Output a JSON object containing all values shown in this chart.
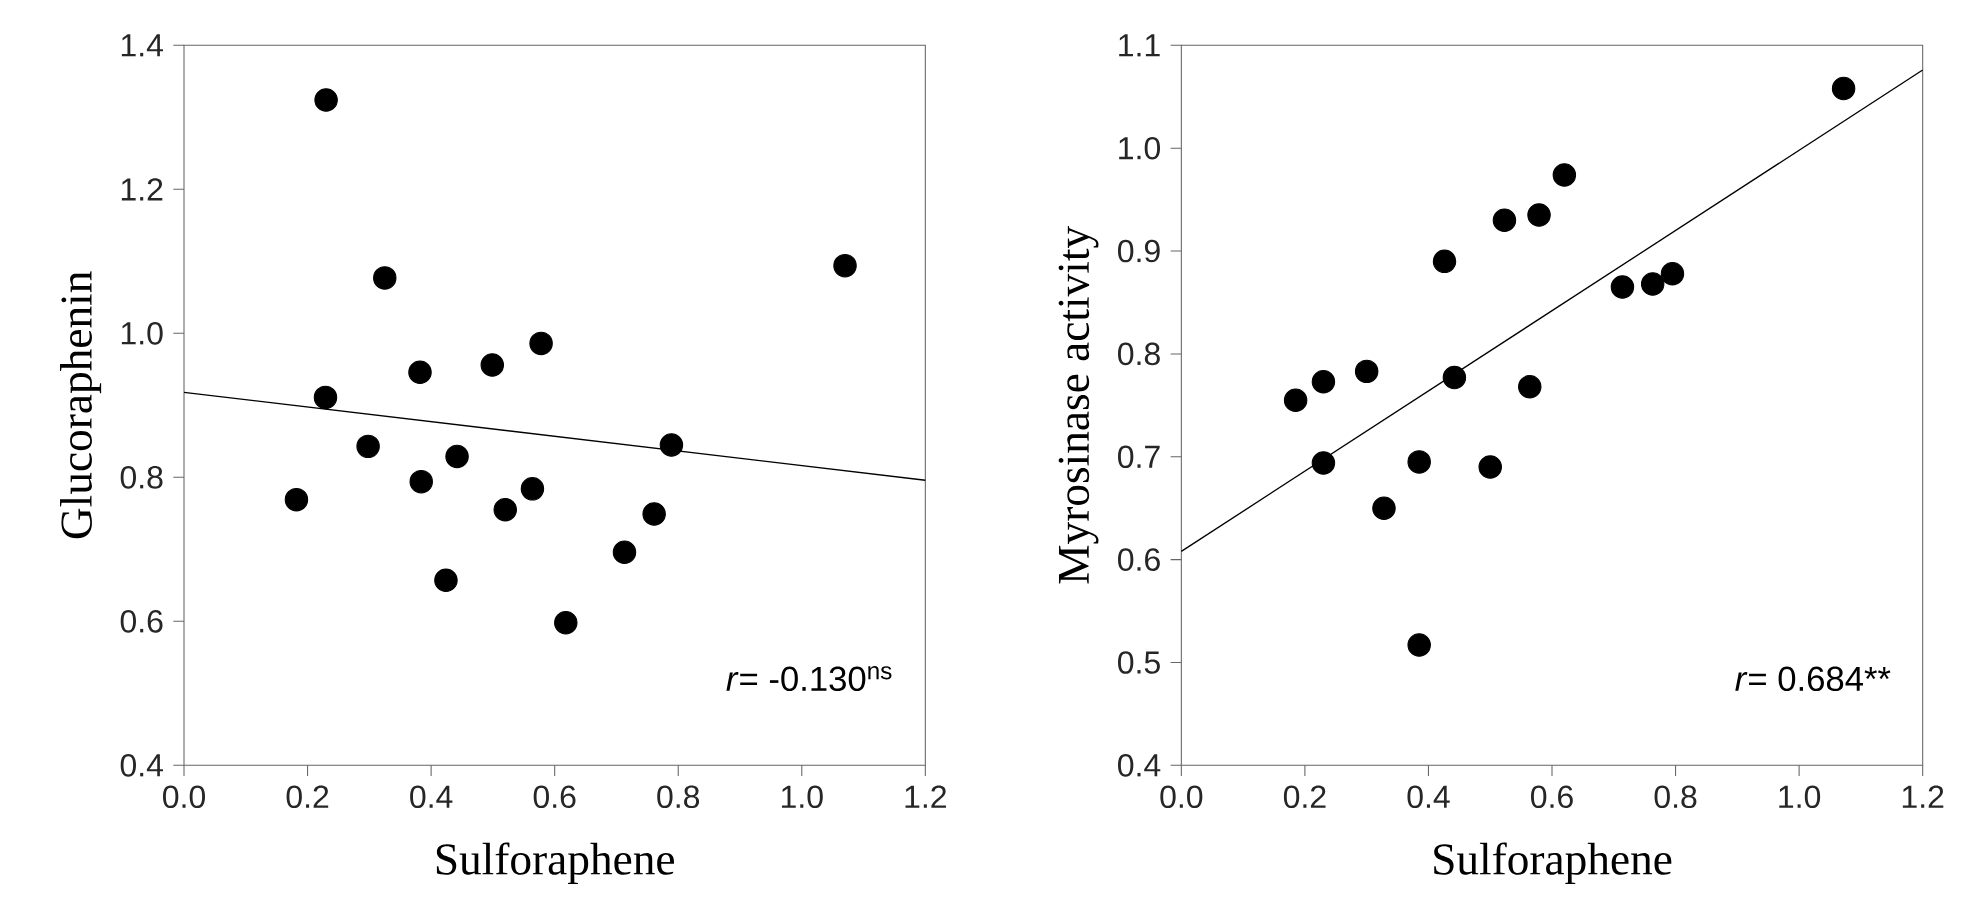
{
  "chart_data": [
    {
      "type": "scatter",
      "xlabel": "Sulforaphene",
      "ylabel": "Glucoraphenin",
      "xlim": [
        0,
        1.2
      ],
      "ylim": [
        0.4,
        1.4
      ],
      "xticks": [
        {
          "value": 0,
          "label": "0.0"
        },
        {
          "value": 0.2,
          "label": "0.2"
        },
        {
          "value": 0.4,
          "label": "0.4"
        },
        {
          "value": 0.6,
          "label": "0.6"
        },
        {
          "value": 0.8,
          "label": "0.8"
        },
        {
          "value": 1.0,
          "label": "1.0"
        },
        {
          "value": 1.2,
          "label": "1.2"
        }
      ],
      "yticks": [
        {
          "value": 0.4,
          "label": "0.4"
        },
        {
          "value": 0.6,
          "label": "0.6"
        },
        {
          "value": 0.8,
          "label": "0.8"
        },
        {
          "value": 1.0,
          "label": "1.0"
        },
        {
          "value": 1.2,
          "label": "1.2"
        },
        {
          "value": 1.4,
          "label": "1.4"
        }
      ],
      "grid": false,
      "legend": false,
      "annotations": [
        "*r*= -0.130$^{ns}$"
      ],
      "series": [
        {
          "marker": "circle",
          "color": "#000000",
          "x": [
            0.182,
            0.229,
            0.23,
            0.298,
            0.325,
            0.382,
            0.384,
            0.424,
            0.442,
            0.499,
            0.52,
            0.564,
            0.578,
            0.618,
            0.713,
            0.761,
            0.789,
            1.07
          ],
          "values": [
            0.769,
            0.911,
            1.324,
            0.843,
            1.077,
            0.946,
            0.794,
            0.657,
            0.829,
            0.956,
            0.755,
            0.784,
            0.986,
            0.598,
            0.696,
            0.749,
            0.845,
            1.094
          ]
        },
        {
          "type": "line",
          "marker": "none",
          "color": "#000000",
          "x": [
            0,
            1.2
          ],
          "values": [
            0.918,
            0.796
          ]
        }
      ]
    },
    {
      "type": "scatter",
      "xlabel": "Sulforaphene",
      "ylabel": "Myrosinase activity",
      "xlim": [
        0,
        1.2
      ],
      "ylim": [
        0.4,
        1.1
      ],
      "xticks": [
        {
          "value": 0,
          "label": "0.0"
        },
        {
          "value": 0.2,
          "label": "0.2"
        },
        {
          "value": 0.4,
          "label": "0.4"
        },
        {
          "value": 0.6,
          "label": "0.6"
        },
        {
          "value": 0.8,
          "label": "0.8"
        },
        {
          "value": 1.0,
          "label": "1.0"
        },
        {
          "value": 1.2,
          "label": "1.2"
        }
      ],
      "yticks": [
        {
          "value": 0.4,
          "label": "0.4"
        },
        {
          "value": 0.5,
          "label": "0.5"
        },
        {
          "value": 0.6,
          "label": "0.6"
        },
        {
          "value": 0.7,
          "label": "0.7"
        },
        {
          "value": 0.8,
          "label": "0.8"
        },
        {
          "value": 0.9,
          "label": "0.9"
        },
        {
          "value": 1.0,
          "label": "1.0"
        },
        {
          "value": 1.1,
          "label": "1.1"
        }
      ],
      "grid": false,
      "legend": false,
      "annotations": [
        "*r*= 0.684**"
      ],
      "series": [
        {
          "marker": "circle",
          "color": "#000000",
          "x": [
            0.185,
            0.23,
            0.23,
            0.3,
            0.328,
            0.385,
            0.385,
            0.426,
            0.442,
            0.5,
            0.523,
            0.564,
            0.579,
            0.62,
            0.714,
            0.763,
            0.795,
            1.072
          ],
          "values": [
            0.755,
            0.773,
            0.694,
            0.783,
            0.65,
            0.695,
            0.517,
            0.89,
            0.777,
            0.69,
            0.93,
            0.768,
            0.935,
            0.974,
            0.865,
            0.868,
            0.878,
            1.058
          ]
        },
        {
          "type": "line",
          "marker": "none",
          "color": "#000000",
          "x": [
            0,
            1.2
          ],
          "values": [
            0.608,
            1.076
          ]
        }
      ]
    }
  ]
}
